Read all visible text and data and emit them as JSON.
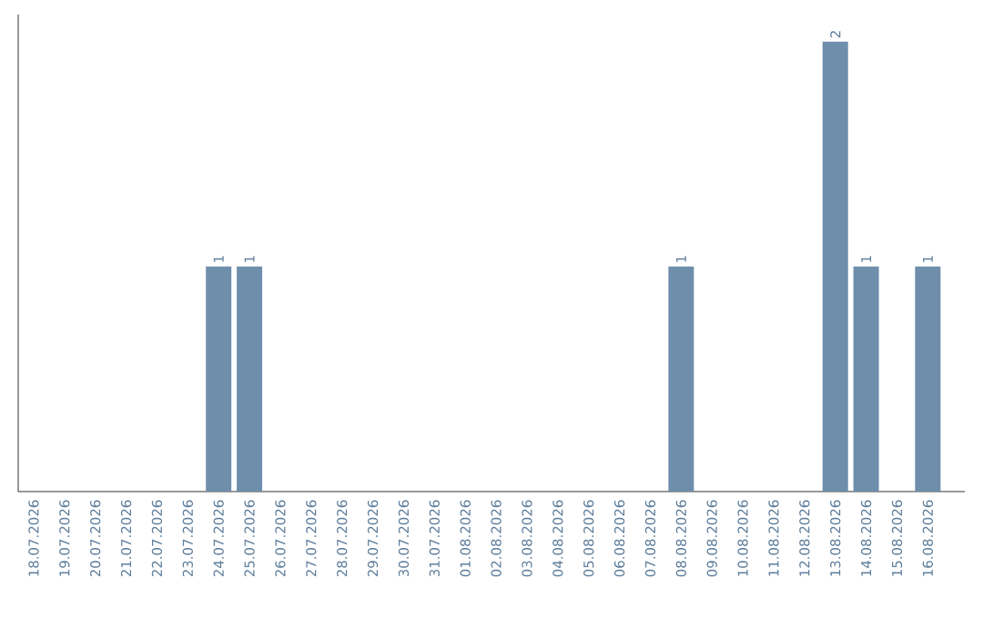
{
  "chart_data": {
    "type": "bar",
    "categories": [
      "18.07.2026",
      "19.07.2026",
      "20.07.2026",
      "21.07.2026",
      "22.07.2026",
      "23.07.2026",
      "24.07.2026",
      "25.07.2026",
      "26.07.2026",
      "27.07.2026",
      "28.07.2026",
      "29.07.2026",
      "30.07.2026",
      "31.07.2026",
      "01.08.2026",
      "02.08.2026",
      "03.08.2026",
      "04.08.2026",
      "05.08.2026",
      "06.08.2026",
      "07.08.2026",
      "08.08.2026",
      "09.08.2026",
      "10.08.2026",
      "11.08.2026",
      "12.08.2026",
      "13.08.2026",
      "14.08.2026",
      "15.08.2026",
      "16.08.2026"
    ],
    "values": [
      0,
      0,
      0,
      0,
      0,
      0,
      1,
      1,
      0,
      0,
      0,
      0,
      0,
      0,
      0,
      0,
      0,
      0,
      0,
      0,
      0,
      1,
      0,
      0,
      0,
      0,
      2,
      1,
      0,
      1
    ],
    "value_labels": [
      null,
      null,
      null,
      null,
      null,
      null,
      "1",
      "1",
      null,
      null,
      null,
      null,
      null,
      null,
      null,
      null,
      null,
      null,
      null,
      null,
      null,
      "1",
      null,
      null,
      null,
      null,
      "2",
      "1",
      null,
      "1"
    ],
    "color": "#6f8eab",
    "tick_labels": "x",
    "grid": false
  }
}
